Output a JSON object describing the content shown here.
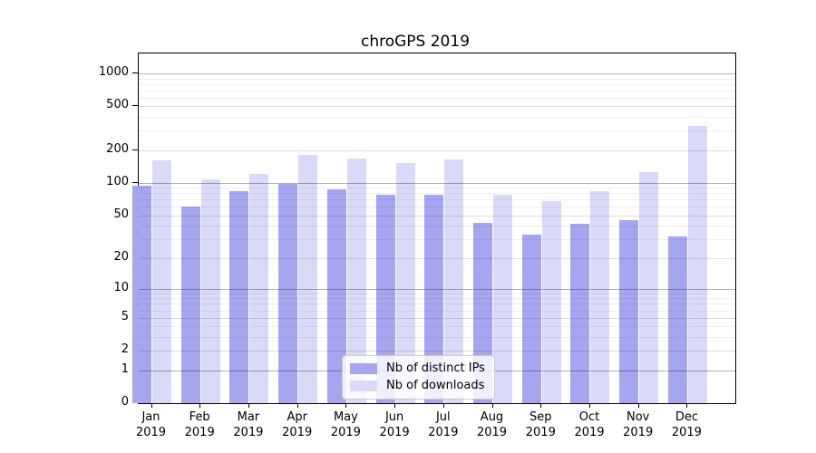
{
  "title": "chroGPS 2019",
  "chart_data": {
    "type": "bar",
    "title": "chroGPS 2019",
    "xlabel": "",
    "ylabel": "",
    "y_scale": "log10(value+1)",
    "ylim": [
      0,
      1500
    ],
    "grid": "horizontal",
    "legend_position": "lower-center",
    "y_ticks": [
      {
        "value": 0,
        "label": "0"
      },
      {
        "value": 1,
        "label": "1"
      },
      {
        "value": 2,
        "label": "2"
      },
      {
        "value": 5,
        "label": "5"
      },
      {
        "value": 10,
        "label": "10"
      },
      {
        "value": 20,
        "label": "20"
      },
      {
        "value": 50,
        "label": "50"
      },
      {
        "value": 100,
        "label": "100"
      },
      {
        "value": 200,
        "label": "200"
      },
      {
        "value": 500,
        "label": "500"
      },
      {
        "value": 1000,
        "label": "1000"
      }
    ],
    "categories": [
      "Jan 2019",
      "Feb 2019",
      "Mar 2019",
      "Apr 2019",
      "May 2019",
      "Jun 2019",
      "Jul 2019",
      "Aug 2019",
      "Sep 2019",
      "Oct 2019",
      "Nov 2019",
      "Dec 2019"
    ],
    "series": [
      {
        "name": "Nb of distinct IPs",
        "color": "#a5a5f0",
        "values": [
          95,
          61,
          84,
          97,
          87,
          78,
          78,
          43,
          33,
          42,
          45,
          32
        ]
      },
      {
        "name": "Nb of downloads",
        "color": "#d9d9f8",
        "values": [
          162,
          107,
          121,
          182,
          168,
          152,
          165,
          77,
          68,
          84,
          125,
          330
        ]
      }
    ]
  },
  "colors": {
    "background": "#ffffff",
    "axis": "#000000",
    "grid_major": "#b3b3b3",
    "grid_mid": "#dddddd",
    "grid_minor": "#efefef",
    "legend_border": "#cccccc"
  }
}
